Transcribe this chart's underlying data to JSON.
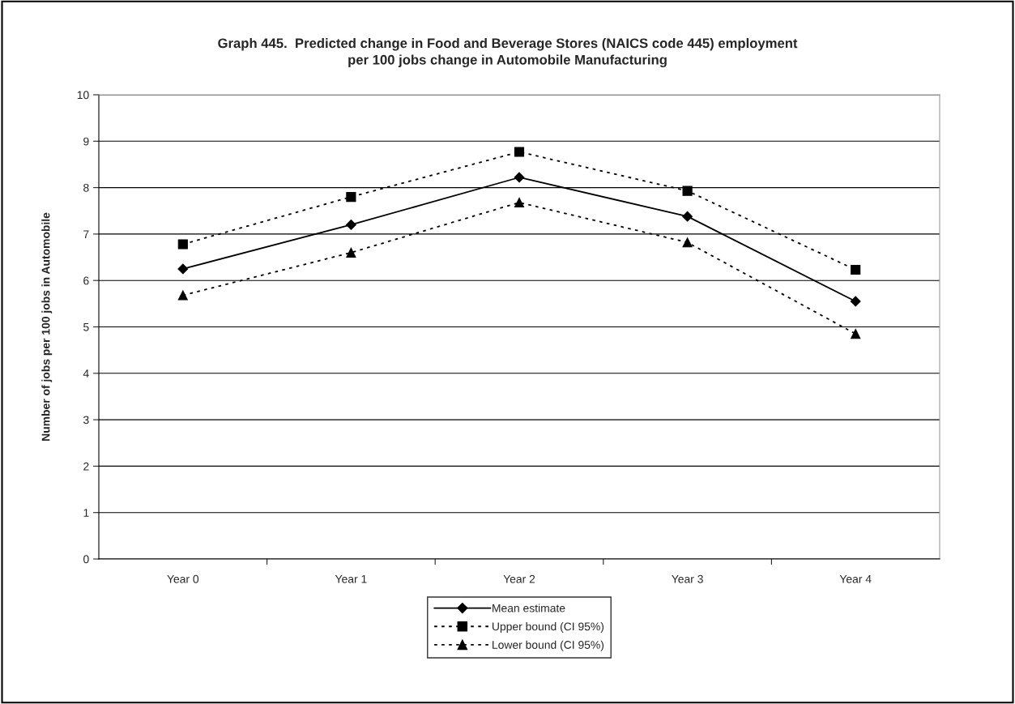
{
  "chart_data": {
    "type": "line",
    "title": "Graph 445.  Predicted change in Food and Beverage Stores (NAICS code 445) employment\nper 100 jobs change in Automobile Manufacturing",
    "ylabel": "Number of jobs per 100 jobs in Automobile",
    "categories": [
      "Year 0",
      "Year 1",
      "Year 2",
      "Year 3",
      "Year 4"
    ],
    "series": [
      {
        "name": "Mean estimate",
        "color": "#000000",
        "marker": "diamond",
        "line_style": "solid",
        "values": [
          6.25,
          7.2,
          8.22,
          7.38,
          5.55
        ]
      },
      {
        "name": "Upper bound (CI 95%)",
        "color": "#000000",
        "marker": "square",
        "line_style": "dotted",
        "values": [
          6.78,
          7.8,
          8.77,
          7.93,
          6.23
        ]
      },
      {
        "name": "Lower bound (CI 95%)",
        "color": "#000000",
        "marker": "triangle",
        "line_style": "dotted",
        "values": [
          5.68,
          6.6,
          7.68,
          6.82,
          4.85
        ]
      }
    ],
    "ylim": [
      0,
      10
    ],
    "yticks": [
      0,
      1,
      2,
      3,
      4,
      5,
      6,
      7,
      8,
      9,
      10
    ],
    "grid": "y",
    "legend": "bottom"
  }
}
